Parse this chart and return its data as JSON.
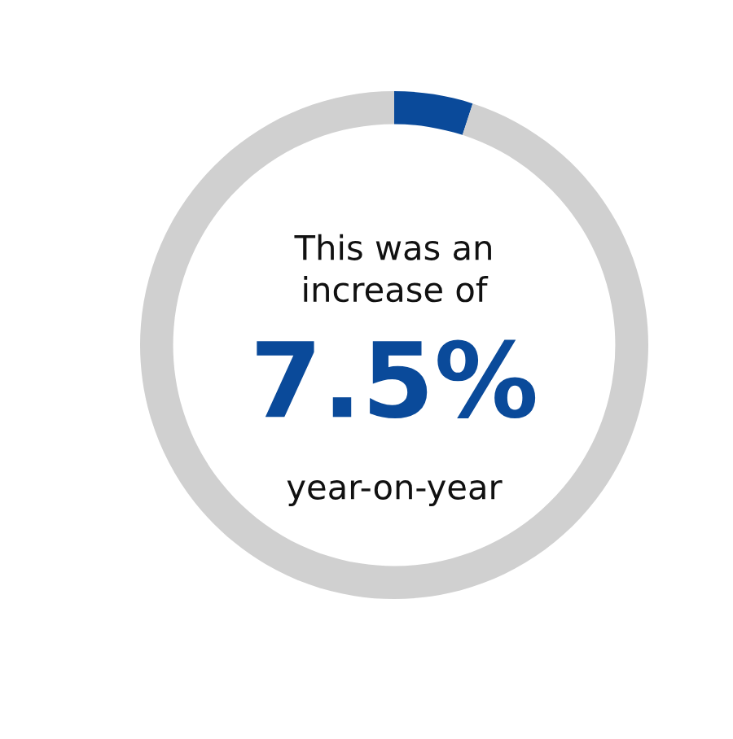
{
  "chart_data": {
    "type": "donut",
    "categories": [
      null,
      null
    ],
    "values": [
      5,
      95
    ],
    "colors": [
      "#0a4a9a",
      "#d0d0d0"
    ],
    "annotations": [
      "This was an\nincrease of",
      "7.5%",
      "year-on-year"
    ]
  }
}
